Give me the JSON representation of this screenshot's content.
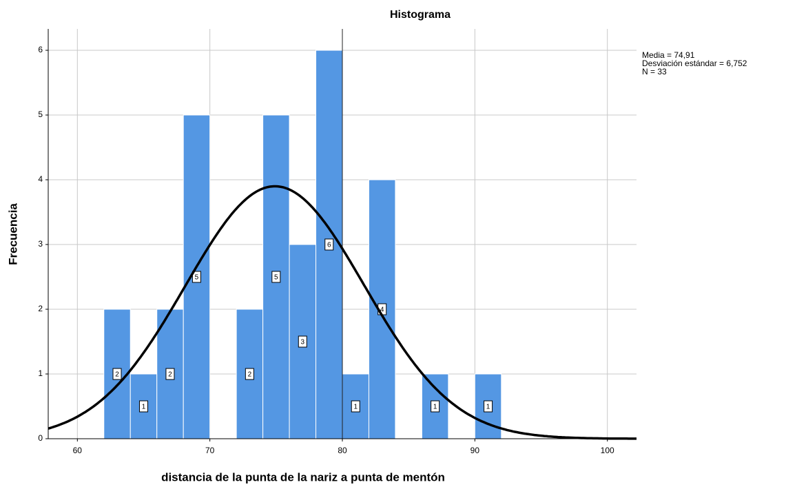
{
  "chart_data": {
    "type": "histogram",
    "title": "Histograma",
    "bins": [
      62,
      64,
      66,
      68,
      70,
      72,
      74,
      76,
      78,
      80,
      82,
      84,
      86,
      88,
      90,
      92
    ],
    "values": [
      2,
      1,
      2,
      5,
      0,
      2,
      5,
      3,
      6,
      1,
      4,
      0,
      1,
      0,
      1
    ],
    "color": "#5497e3",
    "xlabel": "distancia de la punta de la nariz a punta de mentón",
    "ylabel": "Frecuencia",
    "xlim": [
      57.8,
      102.2
    ],
    "xticks": [
      60,
      70,
      80,
      90,
      100
    ],
    "ylim": [
      0,
      6.33
    ],
    "yticks": [
      0,
      1,
      2,
      3,
      4,
      5,
      6
    ],
    "grid": true,
    "reference_line": 80,
    "normal_curve": {
      "mean": {
        "value": 74.91,
        "label": "Media = 74,91"
      },
      "sd": {
        "value": 6.752,
        "label": "Desviación estándar = 6,752"
      },
      "n": {
        "value": 33,
        "label": "N = 33"
      }
    }
  }
}
